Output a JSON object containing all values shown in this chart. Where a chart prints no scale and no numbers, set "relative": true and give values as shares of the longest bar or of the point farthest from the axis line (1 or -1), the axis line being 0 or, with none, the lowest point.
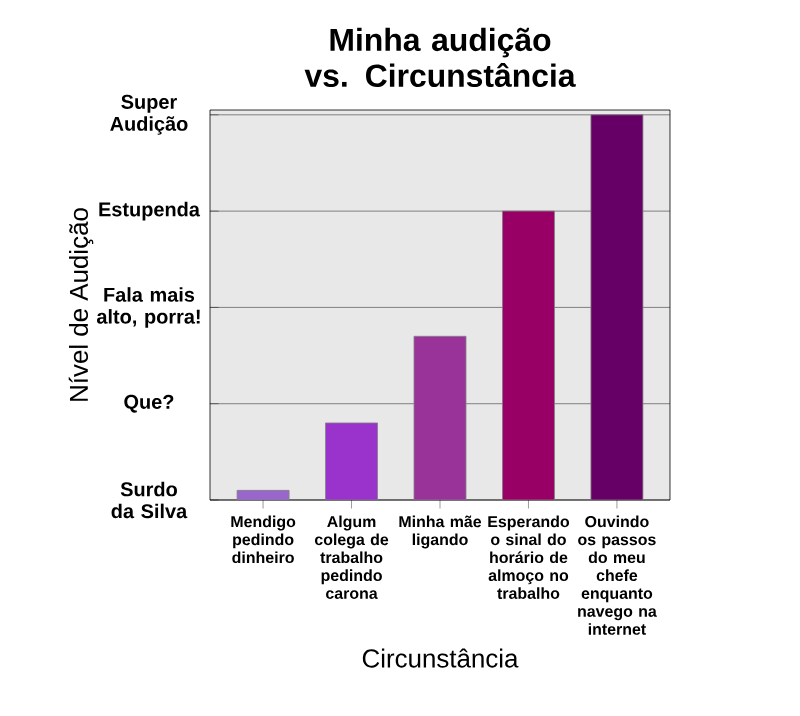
{
  "chart_data": {
    "type": "bar",
    "title": "Minha audição vs. Circunstância",
    "xlabel": "Circunstância",
    "ylabel": "Nível de Audição",
    "categories": [
      "Mendigo pedindo dinheiro",
      "Algum colega de trabalho pedindo carona",
      "Minha mãe ligando",
      "Esperando o sinal do horário de almoço no trabalho",
      "Ouvindo os passos do meu chefe enquanto navego na internet"
    ],
    "values": [
      0.025,
      0.2,
      0.425,
      0.75,
      1
    ],
    "colors": [
      "#9966cc",
      "#9933cc",
      "#993399",
      "#990066",
      "#660066"
    ],
    "relative": true,
    "annotations": [
      "Surdo da Silva",
      "Que?",
      "Fala mais alto, porra!",
      "Estupenda",
      "Super Audição"
    ],
    "grid": "y"
  }
}
